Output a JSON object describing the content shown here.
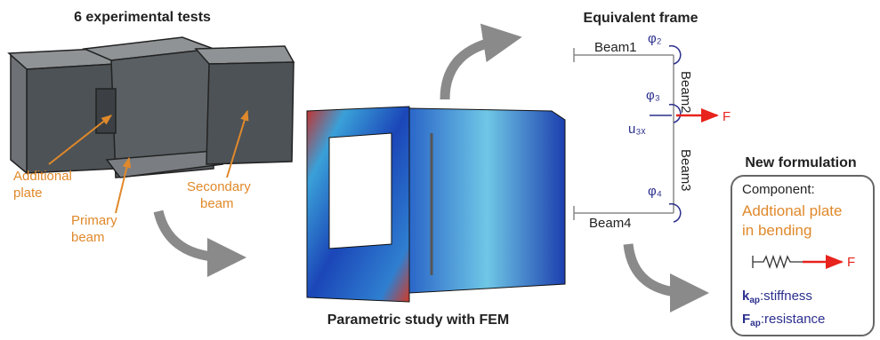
{
  "header": {
    "left_title": "6 experimental tests",
    "right_title": "Equivalent frame",
    "fem_caption": "Parametric study with FEM",
    "new_title": "New formulation"
  },
  "labels": {
    "additional_plate": [
      "Additional",
      "plate"
    ],
    "primary_beam": [
      "Primary",
      "beam"
    ],
    "secondary_beam": [
      "Secondary",
      "beam"
    ]
  },
  "frame": {
    "beams": [
      "Beam1",
      "Beam2",
      "Beam3",
      "Beam4"
    ],
    "rotations": [
      "φ₂",
      "φ₃",
      "φ₄"
    ],
    "displacement": "u₃ₓ",
    "force": "F"
  },
  "component": {
    "heading": "Component:",
    "name": [
      "Addtional plate",
      "in bending"
    ],
    "force": "F",
    "stiffness": {
      "symbol": "k",
      "subscript": "ap",
      "label": ":stiffness"
    },
    "resistance": {
      "symbol": "F",
      "subscript": "ap",
      "label": ":resistance"
    }
  }
}
